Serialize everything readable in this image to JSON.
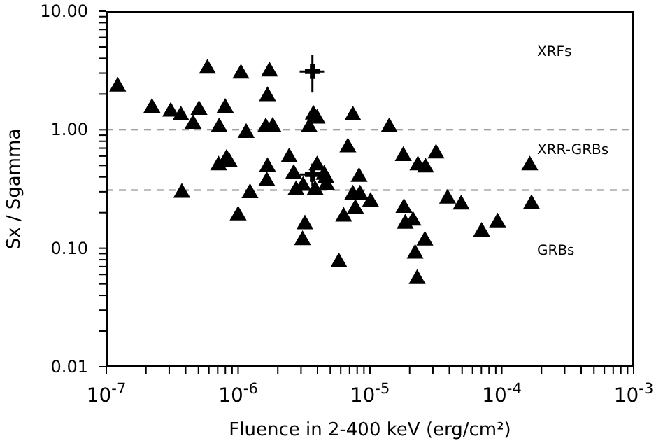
{
  "chart_data": {
    "type": "scatter",
    "xlabel": "Fluence in 2-400 keV (erg/cm²)",
    "ylabel": "Sx / Sgamma",
    "log": "xy",
    "grid": false,
    "legend": false,
    "marker": "triangle",
    "xlim": [
      1e-07,
      0.001
    ],
    "ylim": [
      0.01,
      10
    ],
    "xticks": [
      {
        "value": 1e-07,
        "label": "10$^{-7}$"
      },
      {
        "value": 2e-07,
        "label": null
      },
      {
        "value": 3e-07,
        "label": null
      },
      {
        "value": 4e-07,
        "label": null
      },
      {
        "value": 5e-07,
        "label": null
      },
      {
        "value": 6e-07,
        "label": null
      },
      {
        "value": 7e-07,
        "label": null
      },
      {
        "value": 8e-07,
        "label": null
      },
      {
        "value": 9e-07,
        "label": null
      },
      {
        "value": 1e-06,
        "label": "10$^{-6}$"
      },
      {
        "value": 2e-06,
        "label": null
      },
      {
        "value": 3e-06,
        "label": null
      },
      {
        "value": 4e-06,
        "label": null
      },
      {
        "value": 5e-06,
        "label": null
      },
      {
        "value": 6e-06,
        "label": null
      },
      {
        "value": 7e-06,
        "label": null
      },
      {
        "value": 8e-06,
        "label": null
      },
      {
        "value": 9e-06,
        "label": null
      },
      {
        "value": 1e-05,
        "label": "10$^{-5}$"
      },
      {
        "value": 2e-05,
        "label": null
      },
      {
        "value": 3e-05,
        "label": null
      },
      {
        "value": 4e-05,
        "label": null
      },
      {
        "value": 5e-05,
        "label": null
      },
      {
        "value": 6e-05,
        "label": null
      },
      {
        "value": 7e-05,
        "label": null
      },
      {
        "value": 8e-05,
        "label": null
      },
      {
        "value": 9e-05,
        "label": null
      },
      {
        "value": 0.0001,
        "label": "10$^{-4}$"
      },
      {
        "value": 0.0002,
        "label": null
      },
      {
        "value": 0.0003,
        "label": null
      },
      {
        "value": 0.0004,
        "label": null
      },
      {
        "value": 0.0005,
        "label": null
      },
      {
        "value": 0.0006,
        "label": null
      },
      {
        "value": 0.0007,
        "label": null
      },
      {
        "value": 0.0008,
        "label": null
      },
      {
        "value": 0.0009,
        "label": null
      },
      {
        "value": 0.001,
        "label": "10$^{-3}$"
      }
    ],
    "yticks": [
      {
        "value": 0.01,
        "label": "0.01"
      },
      {
        "value": 0.02,
        "label": null
      },
      {
        "value": 0.03,
        "label": null
      },
      {
        "value": 0.04,
        "label": null
      },
      {
        "value": 0.05,
        "label": null
      },
      {
        "value": 0.06,
        "label": null
      },
      {
        "value": 0.07,
        "label": null
      },
      {
        "value": 0.08,
        "label": null
      },
      {
        "value": 0.09,
        "label": null
      },
      {
        "value": 0.1,
        "label": "0.10"
      },
      {
        "value": 0.2,
        "label": null
      },
      {
        "value": 0.3,
        "label": null
      },
      {
        "value": 0.4,
        "label": null
      },
      {
        "value": 0.5,
        "label": null
      },
      {
        "value": 0.6,
        "label": null
      },
      {
        "value": 0.7,
        "label": null
      },
      {
        "value": 0.8,
        "label": null
      },
      {
        "value": 0.9,
        "label": null
      },
      {
        "value": 1,
        "label": "1.00"
      },
      {
        "value": 2,
        "label": null
      },
      {
        "value": 3,
        "label": null
      },
      {
        "value": 4,
        "label": null
      },
      {
        "value": 5,
        "label": null
      },
      {
        "value": 6,
        "label": null
      },
      {
        "value": 7,
        "label": null
      },
      {
        "value": 8,
        "label": null
      },
      {
        "value": 9,
        "label": null
      },
      {
        "value": 10,
        "label": "10.00"
      }
    ],
    "ref_lines": [
      {
        "axis": "y",
        "value": 1,
        "color": "#808080",
        "line_style": "dashed"
      },
      {
        "axis": "y",
        "value": 0.31,
        "color": "#808080",
        "line_style": "dashed"
      }
    ],
    "annotations": [
      "XRFs",
      "XRR-GRBs",
      "GRBs"
    ],
    "series": [
      {
        "color": "#000000",
        "x": [
          1.22e-07,
          2.22e-07,
          3.08e-07,
          3.68e-07,
          3.74e-07,
          4.55e-07,
          5.05e-07,
          5.85e-07,
          7.18e-07,
          7.11e-07,
          7.98e-07,
          8.17e-07,
          8.59e-07,
          1e-06,
          1.05e-06,
          1.15e-06,
          1.23e-06,
          1.62e-06,
          1.67e-06,
          1.73e-06,
          1.83e-06,
          1.67e-06,
          1.65e-06,
          2.44e-06,
          2.64e-06,
          2.75e-06,
          3.11e-06,
          3.08e-06,
          3.21e-06,
          3.46e-06,
          3.72e-06,
          3.97e-06,
          3.97e-06,
          3.84e-06,
          4.49e-06,
          4.63e-06,
          4.67e-06,
          5.81e-06,
          6.32e-06,
          6.8e-06,
          7.42e-06,
          7.75e-06,
          8.27e-06,
          7.42e-06,
          8.4e-06,
          1.01e-05,
          1.4e-05,
          1.79e-05,
          1.81e-05,
          1.85e-05,
          2.12e-05,
          2.2e-05,
          2.28e-05,
          2.31e-05,
          2.61e-05,
          2.64e-05,
          3.17e-05,
          3.88e-05,
          4.92e-05,
          7.03e-05,
          9.29e-05,
          0.000163,
          0.000168
        ],
        "values": [
          2.31,
          1.53,
          1.42,
          1.32,
          0.294,
          1.12,
          1.47,
          3.27,
          1.05,
          0.5,
          1.53,
          0.57,
          0.53,
          0.189,
          2.97,
          0.94,
          0.292,
          1.05,
          1.92,
          3.1,
          1.06,
          0.485,
          0.368,
          0.585,
          0.425,
          0.31,
          0.336,
          0.117,
          0.159,
          1.05,
          1.34,
          1.24,
          0.5,
          0.31,
          0.417,
          0.392,
          0.343,
          0.076,
          0.185,
          0.71,
          1.32,
          0.216,
          0.4,
          0.284,
          0.284,
          0.247,
          1.05,
          0.6,
          0.219,
          0.161,
          0.171,
          0.09,
          0.055,
          0.5,
          0.116,
          0.48,
          0.63,
          0.262,
          0.234,
          0.138,
          0.165,
          0.5,
          0.236
        ]
      },
      {
        "color": "#000000",
        "marker": "cross",
        "x": [
          3.66e-06,
          3.66e-06
        ],
        "values": [
          3.1,
          0.42
        ],
        "errors": [
          [
            2.06,
            4.25
          ],
          [
            0.336,
            0.52
          ]
        ],
        "xerrors": [
          [
            2.93e-06,
            4.49e-06
          ],
          [
            2.93e-06,
            4.49e-06
          ]
        ]
      }
    ]
  }
}
